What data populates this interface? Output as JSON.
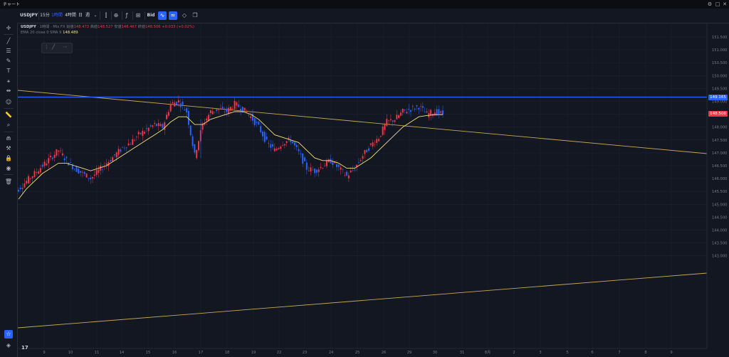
{
  "window": {
    "title": "チャート"
  },
  "toolbar": {
    "symbol": "USDJPY",
    "intervals": [
      "15分",
      "1時間",
      "4時間",
      "日",
      "週"
    ],
    "active_interval": "1時間",
    "price_side": "Bid"
  },
  "legend": {
    "symbol": "USDJPY",
    "interval": "1時間",
    "source": "Mix FX",
    "open_label": "始値",
    "open": "148.473",
    "high_label": "高値",
    "high": "148.527",
    "low_label": "安値",
    "low": "148.467",
    "close_label": "終値",
    "close": "148.506",
    "change": "+0.033 (+0.02%)",
    "indicator": "EMA 20 close 0 SMA 9",
    "indicator_value": "148.489"
  },
  "price_axis": {
    "ticks": [
      "151.500",
      "151.000",
      "150.500",
      "150.000",
      "149.500",
      "149.000",
      "148.500",
      "148.000",
      "147.500",
      "147.000",
      "146.500",
      "146.000",
      "145.500",
      "145.000",
      "144.500",
      "144.000",
      "143.500",
      "143.000"
    ],
    "horizontal_line_label": "149.165",
    "last_price_label": "148.506"
  },
  "time_axis": {
    "labels": [
      "9",
      "10",
      "11",
      "14",
      "15",
      "16",
      "17",
      "18",
      "19",
      "22",
      "23",
      "24",
      "25",
      "26",
      "29",
      "30",
      "31",
      "8月",
      "2",
      "3",
      "5",
      "6",
      "7",
      "8",
      "9"
    ]
  },
  "colors": {
    "background": "#131722",
    "grid": "#1e2230",
    "up": "#f23645",
    "down": "#2962ff",
    "ema": "#f7e17b",
    "trendline": "#c9a84c",
    "hline": "#2962ff"
  },
  "chart_data": {
    "type": "candlestick",
    "y_range": [
      142.8,
      151.8
    ],
    "series": [
      {
        "name": "USDJPY",
        "close": [
          145.6,
          145.9,
          146.2,
          146.5,
          146.8,
          147.1,
          146.7,
          146.4,
          146.2,
          146.0,
          146.3,
          146.6,
          146.9,
          147.2,
          147.4,
          147.7,
          147.9,
          148.1,
          148.0,
          148.9,
          149.0,
          148.6,
          146.9,
          148.1,
          148.6,
          148.7,
          148.6,
          148.9,
          148.7,
          148.4,
          148.0,
          147.4,
          147.1,
          147.4,
          147.5,
          147.0,
          146.4,
          146.3,
          146.5,
          146.7,
          146.4,
          146.1,
          146.4,
          146.9,
          147.3,
          147.6,
          148.2,
          148.3,
          148.6,
          148.7,
          148.8,
          148.5,
          148.6,
          148.5
        ]
      },
      {
        "name": "EMA 20",
        "values": [
          145.2,
          145.6,
          145.9,
          146.2,
          146.4,
          146.6,
          146.6,
          146.5,
          146.4,
          146.3,
          146.4,
          146.5,
          146.7,
          146.9,
          147.1,
          147.3,
          147.5,
          147.7,
          147.9,
          148.2,
          148.4,
          148.4,
          148.1,
          148.1,
          148.3,
          148.4,
          148.5,
          148.6,
          148.6,
          148.5,
          148.3,
          148.0,
          147.7,
          147.6,
          147.5,
          147.4,
          147.1,
          146.8,
          146.7,
          146.7,
          146.6,
          146.4,
          146.4,
          146.6,
          146.8,
          147.1,
          147.4,
          147.7,
          148.0,
          148.2,
          148.4,
          148.45,
          148.48,
          148.489
        ]
      }
    ]
  }
}
